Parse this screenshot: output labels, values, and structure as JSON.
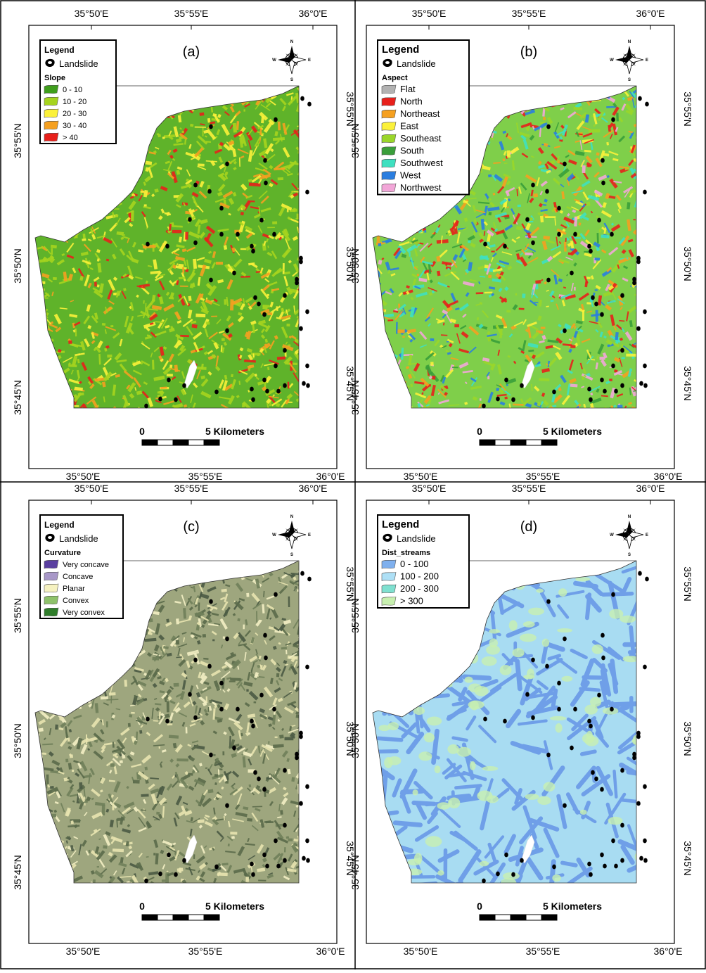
{
  "colors": {
    "landslide": "#000000",
    "frame": "#000000",
    "water": "#ffffff"
  },
  "panels": [
    {
      "id": "a",
      "label": "(a)",
      "legend_title": "Legend",
      "landslide_label": "Landslide",
      "layer_title": "Slope",
      "classes": [
        {
          "label": "0 - 10",
          "color": "#3f9e1c"
        },
        {
          "label": "10 - 20",
          "color": "#a6d41e"
        },
        {
          "label": "20 - 30",
          "color": "#fbf13a"
        },
        {
          "label": "30 - 40",
          "color": "#f5a020"
        },
        {
          "label": "> 40",
          "color": "#e8201b"
        }
      ],
      "base_color": "#5fb32a",
      "texture_colors": [
        "#a6d41e",
        "#fbf13a",
        "#f5a020",
        "#e8201b"
      ],
      "texture_weights": [
        0.45,
        0.28,
        0.17,
        0.1
      ],
      "scalebar_zero": "0",
      "scalebar_label": "5 Kilometers",
      "x_ticks_top": [
        "35°50'E",
        "35°55'E",
        "36°0'E"
      ],
      "x_ticks_bottom": [
        "35°50'E",
        "35°55'E",
        "36°0'E"
      ],
      "y_ticks_left": [
        "35°55'N",
        "35°50'N",
        "35°45'N"
      ],
      "y_ticks_right": [
        "35°55'N",
        "35°50'N",
        "35°45'N"
      ]
    },
    {
      "id": "b",
      "label": "(b)",
      "legend_title": "Legend",
      "landslide_label": "Landslide",
      "layer_title": "Aspect",
      "classes": [
        {
          "label": "Flat",
          "color": "#b2b2b2"
        },
        {
          "label": "North",
          "color": "#e8201b"
        },
        {
          "label": "Northeast",
          "color": "#f5a020"
        },
        {
          "label": "East",
          "color": "#fbf13a"
        },
        {
          "label": "Southeast",
          "color": "#9ad62a"
        },
        {
          "label": "South",
          "color": "#3a9e3a"
        },
        {
          "label": "Southwest",
          "color": "#3fe0c0"
        },
        {
          "label": "West",
          "color": "#2a7ee0"
        },
        {
          "label": "Northwest",
          "color": "#f2a6d8"
        }
      ],
      "base_color": "#7fcf4a",
      "texture_colors": [
        "#e8201b",
        "#f5a020",
        "#fbf13a",
        "#9ad62a",
        "#3fe0c0",
        "#2a7ee0",
        "#f2a6d8",
        "#3a9e3a"
      ],
      "texture_weights": [
        0.17,
        0.12,
        0.14,
        0.15,
        0.14,
        0.12,
        0.09,
        0.07
      ],
      "scalebar_zero": "0",
      "scalebar_label": "5 Kilometers",
      "x_ticks_top": [
        "35°50'E",
        "35°55'E",
        "36°0'E"
      ],
      "x_ticks_bottom": [
        "35°50'E",
        "35°55'E",
        "36°0'E"
      ],
      "y_ticks_left": [
        "35°55'N",
        "35°50'N",
        "35°45'N"
      ],
      "y_ticks_right": [
        "35°55'N",
        "35°50'N",
        "35°45'N"
      ]
    },
    {
      "id": "c",
      "label": "(c)",
      "legend_title": "Legend",
      "landslide_label": "Landslide",
      "layer_title": "Curvature",
      "classes": [
        {
          "label": "Very concave",
          "color": "#5a3fa0"
        },
        {
          "label": "Concave",
          "color": "#a898c8"
        },
        {
          "label": "Planar",
          "color": "#f6f2c0"
        },
        {
          "label": "Convex",
          "color": "#8ec26a"
        },
        {
          "label": "Very convex",
          "color": "#2f7d2a"
        }
      ],
      "base_color": "#9ea67e",
      "texture_colors": [
        "#5a6a4a",
        "#e8e4b0",
        "#6f7f5a",
        "#f3efc4",
        "#4a5a44"
      ],
      "texture_weights": [
        0.28,
        0.24,
        0.22,
        0.14,
        0.12
      ],
      "scalebar_zero": "0",
      "scalebar_label": "5 Kilometers",
      "x_ticks_top": [
        "35°50'E",
        "35°55'E",
        "36°0'E"
      ],
      "x_ticks_bottom": [
        "35°50'E",
        "35°55'E",
        "36°0'E"
      ],
      "y_ticks_left": [
        "35°55'N",
        "35°50'N",
        "35°45'N"
      ],
      "y_ticks_right": [
        "35°55'N",
        "35°50'N",
        "35°45'N"
      ]
    },
    {
      "id": "d",
      "label": "(d)",
      "legend_title": "Legend",
      "landslide_label": "Landslide",
      "layer_title": "Dist_streams",
      "classes": [
        {
          "label": "0 - 100",
          "color": "#7fb0ee"
        },
        {
          "label": "100 - 200",
          "color": "#aee0f6"
        },
        {
          "label": "200 - 300",
          "color": "#7fe0d0"
        },
        {
          "label": "> 300",
          "color": "#c8f0b0"
        }
      ],
      "base_color": "#a8dcf2",
      "texture_colors": [
        "#7fb0ee",
        "#7fb0ee",
        "#c8f0b0",
        "#8fdcd0"
      ],
      "texture_weights": [
        0.4,
        0.3,
        0.18,
        0.12
      ],
      "scalebar_zero": "0",
      "scalebar_label": "5 Kilometers",
      "x_ticks_top": [
        "35°50'E",
        "35°55'E",
        "36°0'E"
      ],
      "x_ticks_bottom": [
        "35°50'E",
        "35°55'E",
        "36°0'E"
      ],
      "y_ticks_left": [
        "35°55'N",
        "35°50'N",
        "35°45'N"
      ],
      "y_ticks_right": [
        "35°55'N",
        "35°50'N",
        "35°45'N"
      ]
    }
  ],
  "compass": {
    "n": "N",
    "s": "S",
    "e": "E",
    "w": "W"
  }
}
